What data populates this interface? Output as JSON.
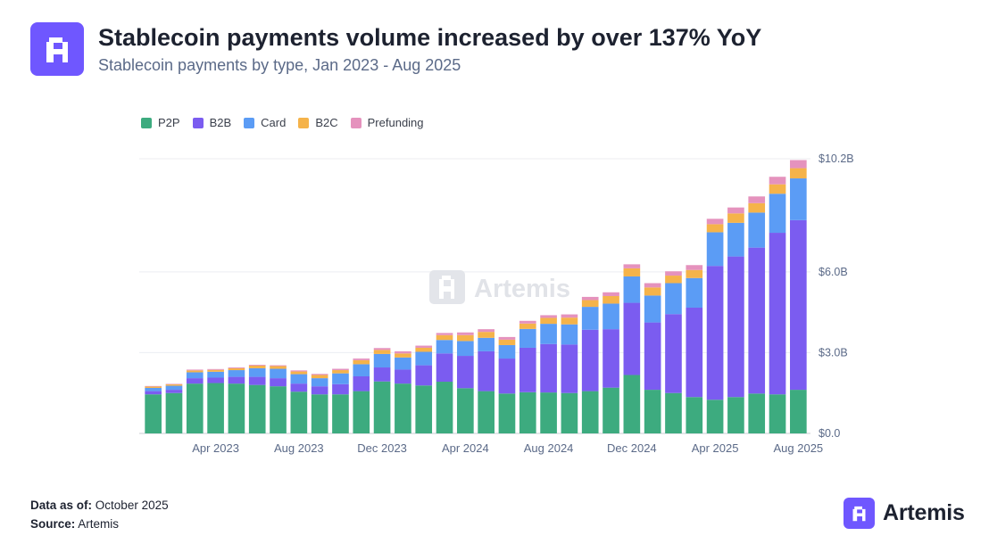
{
  "header": {
    "title": "Stablecoin payments volume increased by over 137% YoY",
    "subtitle": "Stablecoin payments by type, Jan 2023 - Aug 2025"
  },
  "watermark": "Artemis",
  "footer": {
    "data_as_of_label": "Data as of:",
    "data_as_of_value": "October 2025",
    "source_label": "Source:",
    "source_value": "Artemis"
  },
  "brand": {
    "name": "Artemis",
    "icon": "artemis-logo-icon",
    "color": "#6f57ff"
  },
  "chart_data": {
    "type": "bar",
    "stacked": true,
    "title": "Stablecoin payments volume increased by over 137% YoY",
    "subtitle": "Stablecoin payments by type, Jan 2023 - Aug 2025",
    "xlabel": "",
    "ylabel": "",
    "y_axis_side": "right",
    "ylim": [
      0,
      10.2
    ],
    "y_ticks": [
      {
        "value": 0,
        "label": "$0.0"
      },
      {
        "value": 3,
        "label": "$3.0B"
      },
      {
        "value": 6,
        "label": "$6.0B"
      },
      {
        "value": 10.2,
        "label": "$10.2B"
      }
    ],
    "grid": true,
    "legend_position": "top-left",
    "categories": [
      "Jan 2023",
      "Feb 2023",
      "Mar 2023",
      "Apr 2023",
      "May 2023",
      "Jun 2023",
      "Jul 2023",
      "Aug 2023",
      "Sep 2023",
      "Oct 2023",
      "Nov 2023",
      "Dec 2023",
      "Jan 2024",
      "Feb 2024",
      "Mar 2024",
      "Apr 2024",
      "May 2024",
      "Jun 2024",
      "Jul 2024",
      "Aug 2024",
      "Sep 2024",
      "Oct 2024",
      "Nov 2024",
      "Dec 2024",
      "Jan 2025",
      "Feb 2025",
      "Mar 2025",
      "Apr 2025",
      "May 2025",
      "Jun 2025",
      "Jul 2025",
      "Aug 2025"
    ],
    "x_tick_labels": [
      {
        "index": 3,
        "label": "Apr 2023"
      },
      {
        "index": 7,
        "label": "Aug 2023"
      },
      {
        "index": 11,
        "label": "Dec 2023"
      },
      {
        "index": 15,
        "label": "Apr 2024"
      },
      {
        "index": 19,
        "label": "Aug 2024"
      },
      {
        "index": 23,
        "label": "Dec 2024"
      },
      {
        "index": 27,
        "label": "Apr 2025"
      },
      {
        "index": 31,
        "label": "Aug 2025"
      }
    ],
    "series": [
      {
        "name": "P2P",
        "color": "#3dab7f",
        "values": [
          1.45,
          1.5,
          1.85,
          1.87,
          1.85,
          1.8,
          1.75,
          1.55,
          1.45,
          1.45,
          1.57,
          1.93,
          1.85,
          1.78,
          1.92,
          1.68,
          1.57,
          1.48,
          1.53,
          1.52,
          1.5,
          1.57,
          1.7,
          2.17,
          1.62,
          1.5,
          1.35,
          1.25,
          1.35,
          1.48,
          1.45,
          1.62
        ]
      },
      {
        "name": "B2B",
        "color": "#7b5cf0",
        "values": [
          0.12,
          0.12,
          0.2,
          0.2,
          0.25,
          0.3,
          0.3,
          0.3,
          0.3,
          0.38,
          0.55,
          0.52,
          0.52,
          0.75,
          1.05,
          1.2,
          1.48,
          1.3,
          1.65,
          1.8,
          1.8,
          2.28,
          2.17,
          2.68,
          2.5,
          2.93,
          3.32,
          4.97,
          5.22,
          5.42,
          6.0,
          6.3
        ]
      },
      {
        "name": "Card",
        "color": "#5b9cf5",
        "values": [
          0.12,
          0.15,
          0.22,
          0.22,
          0.25,
          0.32,
          0.35,
          0.35,
          0.3,
          0.4,
          0.45,
          0.5,
          0.45,
          0.5,
          0.5,
          0.55,
          0.5,
          0.5,
          0.7,
          0.75,
          0.75,
          0.85,
          0.95,
          0.98,
          1.0,
          1.15,
          1.1,
          1.25,
          1.25,
          1.3,
          1.45,
          1.55
        ]
      },
      {
        "name": "B2C",
        "color": "#f5b34a",
        "values": [
          0.05,
          0.05,
          0.07,
          0.07,
          0.07,
          0.1,
          0.1,
          0.1,
          0.12,
          0.12,
          0.15,
          0.15,
          0.15,
          0.15,
          0.18,
          0.22,
          0.22,
          0.2,
          0.2,
          0.22,
          0.25,
          0.25,
          0.28,
          0.3,
          0.3,
          0.28,
          0.3,
          0.3,
          0.35,
          0.35,
          0.35,
          0.38
        ]
      },
      {
        "name": "Prefunding",
        "color": "#e592bd",
        "values": [
          0.02,
          0.02,
          0.03,
          0.03,
          0.03,
          0.03,
          0.03,
          0.04,
          0.04,
          0.05,
          0.06,
          0.07,
          0.08,
          0.08,
          0.08,
          0.1,
          0.1,
          0.1,
          0.1,
          0.1,
          0.12,
          0.12,
          0.14,
          0.15,
          0.16,
          0.16,
          0.18,
          0.2,
          0.22,
          0.25,
          0.28,
          0.3
        ]
      }
    ]
  }
}
